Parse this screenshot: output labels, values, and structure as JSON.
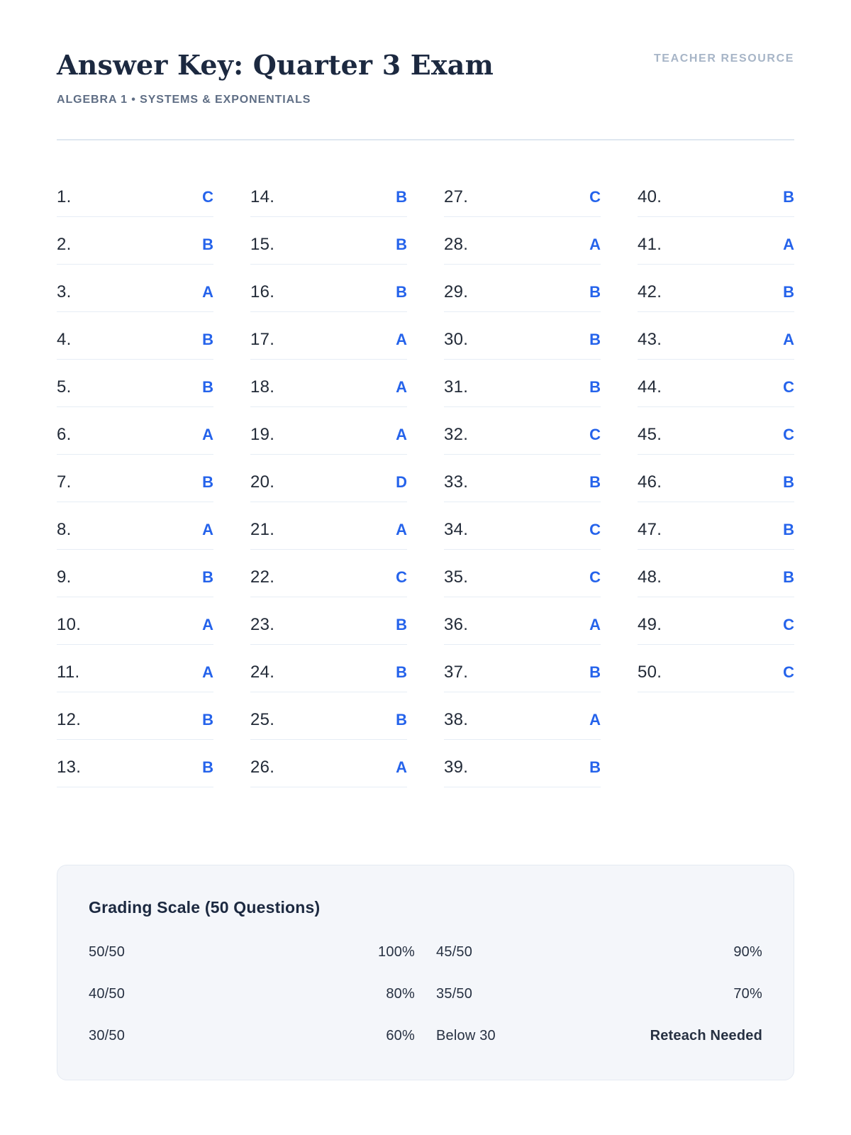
{
  "page": {
    "title": "Answer Key: Quarter 3 Exam",
    "badge": "TEACHER RESOURCE",
    "subtitle": "ALGEBRA 1 • SYSTEMS & EXPONENTIALS"
  },
  "answers": [
    {
      "num": "1.",
      "choice": "C"
    },
    {
      "num": "2.",
      "choice": "B"
    },
    {
      "num": "3.",
      "choice": "A"
    },
    {
      "num": "4.",
      "choice": "B"
    },
    {
      "num": "5.",
      "choice": "B"
    },
    {
      "num": "6.",
      "choice": "A"
    },
    {
      "num": "7.",
      "choice": "B"
    },
    {
      "num": "8.",
      "choice": "A"
    },
    {
      "num": "9.",
      "choice": "B"
    },
    {
      "num": "10.",
      "choice": "A"
    },
    {
      "num": "11.",
      "choice": "A"
    },
    {
      "num": "12.",
      "choice": "B"
    },
    {
      "num": "13.",
      "choice": "B"
    },
    {
      "num": "14.",
      "choice": "B"
    },
    {
      "num": "15.",
      "choice": "B"
    },
    {
      "num": "16.",
      "choice": "B"
    },
    {
      "num": "17.",
      "choice": "A"
    },
    {
      "num": "18.",
      "choice": "A"
    },
    {
      "num": "19.",
      "choice": "A"
    },
    {
      "num": "20.",
      "choice": "D"
    },
    {
      "num": "21.",
      "choice": "A"
    },
    {
      "num": "22.",
      "choice": "C"
    },
    {
      "num": "23.",
      "choice": "B"
    },
    {
      "num": "24.",
      "choice": "B"
    },
    {
      "num": "25.",
      "choice": "B"
    },
    {
      "num": "26.",
      "choice": "A"
    },
    {
      "num": "27.",
      "choice": "C"
    },
    {
      "num": "28.",
      "choice": "A"
    },
    {
      "num": "29.",
      "choice": "B"
    },
    {
      "num": "30.",
      "choice": "B"
    },
    {
      "num": "31.",
      "choice": "B"
    },
    {
      "num": "32.",
      "choice": "C"
    },
    {
      "num": "33.",
      "choice": "B"
    },
    {
      "num": "34.",
      "choice": "C"
    },
    {
      "num": "35.",
      "choice": "C"
    },
    {
      "num": "36.",
      "choice": "A"
    },
    {
      "num": "37.",
      "choice": "B"
    },
    {
      "num": "38.",
      "choice": "A"
    },
    {
      "num": "39.",
      "choice": "B"
    },
    {
      "num": "40.",
      "choice": "B"
    },
    {
      "num": "41.",
      "choice": "A"
    },
    {
      "num": "42.",
      "choice": "B"
    },
    {
      "num": "43.",
      "choice": "A"
    },
    {
      "num": "44.",
      "choice": "C"
    },
    {
      "num": "45.",
      "choice": "C"
    },
    {
      "num": "46.",
      "choice": "B"
    },
    {
      "num": "47.",
      "choice": "B"
    },
    {
      "num": "48.",
      "choice": "B"
    },
    {
      "num": "49.",
      "choice": "C"
    },
    {
      "num": "50.",
      "choice": "C"
    }
  ],
  "grading": {
    "title": "Grading Scale (50 Questions)",
    "rows": [
      {
        "label": "50/50",
        "value": "100%"
      },
      {
        "label": "45/50",
        "value": "90%"
      },
      {
        "label": "40/50",
        "value": "80%"
      },
      {
        "label": "35/50",
        "value": "70%"
      },
      {
        "label": "30/50",
        "value": "60%"
      },
      {
        "label": "Below 30",
        "value": "Reteach Needed",
        "emphasis": true
      }
    ]
  },
  "colors": {
    "accent": "#2563eb",
    "heading": "#1c2940",
    "muted": "#5f6e85",
    "badge": "#a7b5c7"
  }
}
